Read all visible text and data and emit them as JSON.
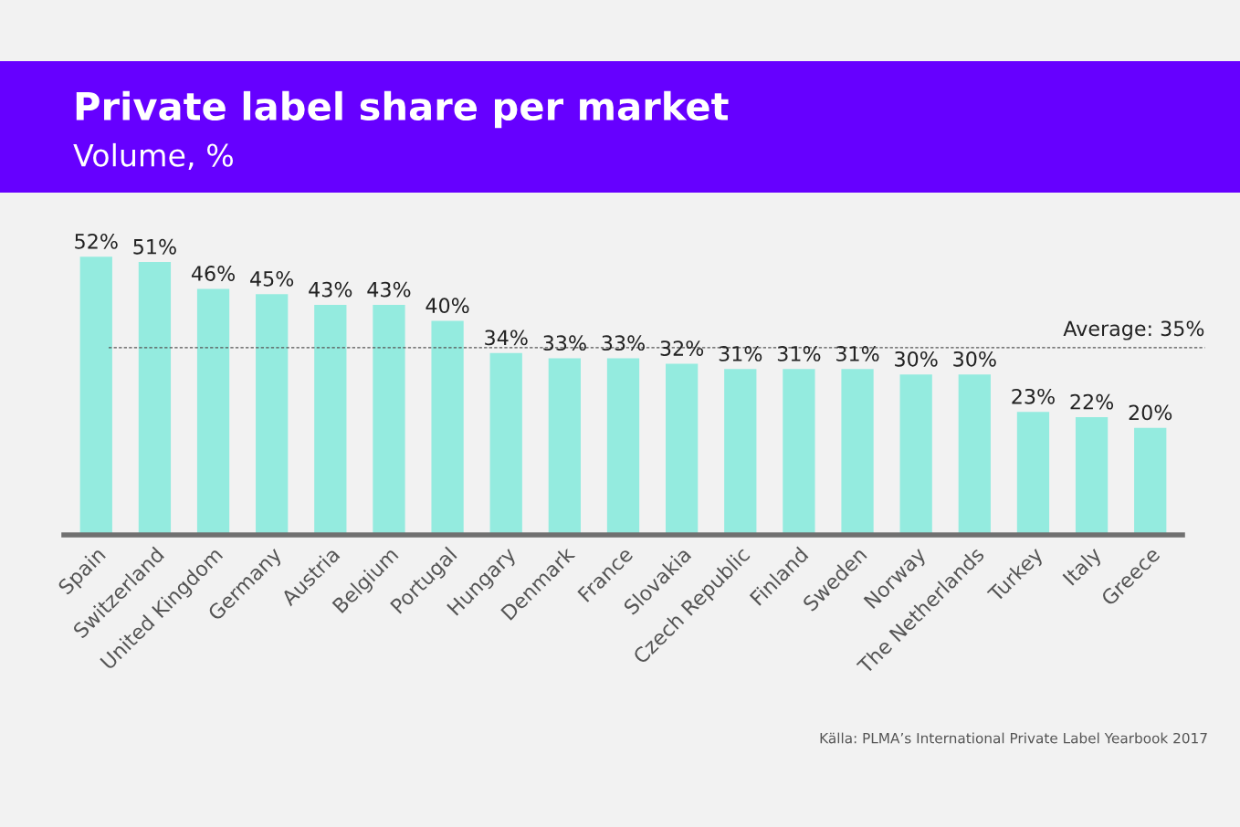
{
  "chart_data": {
    "type": "bar",
    "title": "Private label share per market",
    "subtitle": "Volume, %",
    "categories": [
      "Spain",
      "Switzerland",
      "United Kingdom",
      "Germany",
      "Austria",
      "Belgium",
      "Portugal",
      "Hungary",
      "Denmark",
      "France",
      "Slovakia",
      "Czech Republic",
      "Finland",
      "Sweden",
      "Norway",
      "The Netherlands",
      "Turkey",
      "Italy",
      "Greece"
    ],
    "values": [
      52,
      51,
      46,
      45,
      43,
      43,
      40,
      34,
      33,
      33,
      32,
      31,
      31,
      31,
      30,
      30,
      23,
      22,
      20
    ],
    "value_labels": [
      "52%",
      "51%",
      "46%",
      "45%",
      "43%",
      "43%",
      "40%",
      "34%",
      "33%",
      "33%",
      "32%",
      "31%",
      "31%",
      "31%",
      "30%",
      "30%",
      "23%",
      "22%",
      "20%"
    ],
    "color": "#94ebdf",
    "grid": false,
    "legend": false,
    "tick_labels": "x",
    "ref_lines": [
      {
        "axis": "y",
        "value": 35,
        "label": "Average: 35%",
        "color": "#555555",
        "line_style": "dashed"
      }
    ],
    "annotations": [
      "Källa: PLMA’s International Private Label Yearbook 2017"
    ]
  }
}
